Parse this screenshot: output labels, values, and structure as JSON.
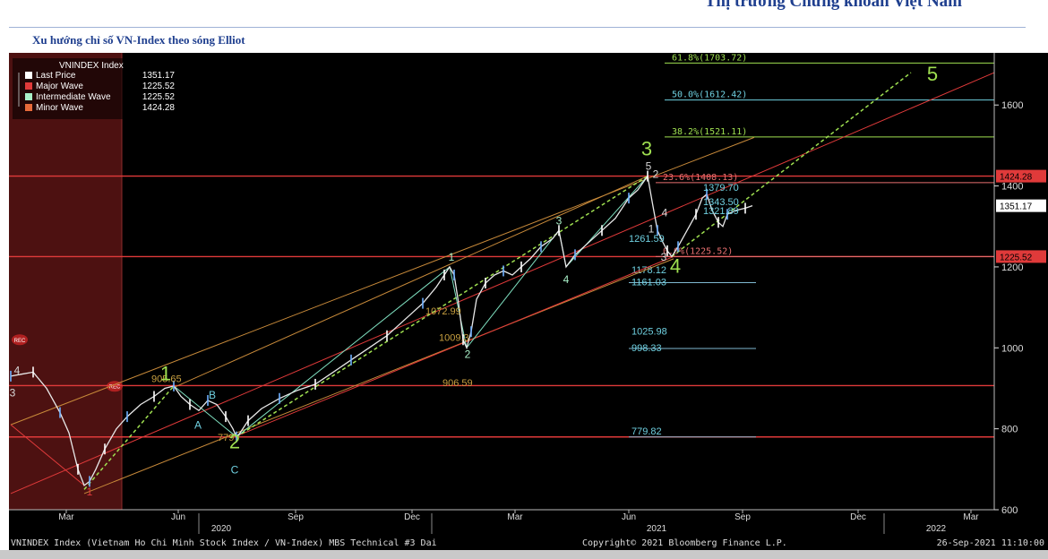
{
  "header": {
    "title": "Thị trường Chứng khoán Việt Nam"
  },
  "subtitle": "Xu hướng chỉ số VN-Index theo sóng Elliot",
  "colors": {
    "last": "#e8e8e8",
    "major": "#e03a3a",
    "intermediate": "#d9d9d9",
    "minor": "#e86a3a",
    "channel": "#c88a3a",
    "wave": "#9fe050",
    "fib": "#6fd0e0"
  },
  "chart_data": {
    "type": "line",
    "legend": {
      "title": "VNINDEX Index",
      "entries": [
        {
          "name": "Last Price",
          "value": "1351.17",
          "color": "#ffffff"
        },
        {
          "name": "Major Wave",
          "value": "1225.52",
          "color": "#e03a3a"
        },
        {
          "name": "Intermediate Wave",
          "value": "1225.52",
          "color": "#a8f0c8"
        },
        {
          "name": "Minor Wave",
          "value": "1424.28",
          "color": "#e86a3a"
        }
      ]
    },
    "ylim": [
      600,
      1720
    ],
    "yticks": [
      {
        "v": 600,
        "label": "600"
      },
      {
        "v": 800,
        "label": "800"
      },
      {
        "v": 1000,
        "label": "1000"
      },
      {
        "v": 1200,
        "label": "1200"
      },
      {
        "v": 1400,
        "label": "1400"
      },
      {
        "v": 1600,
        "label": "1600"
      }
    ],
    "xlim": [
      0,
      1098
    ],
    "xticks": [
      {
        "x": 62,
        "label": "Mar"
      },
      {
        "x": 187,
        "label": "Jun"
      },
      {
        "x": 318,
        "label": "Sep"
      },
      {
        "x": 448,
        "label": "Dec"
      },
      {
        "x": 563,
        "label": "Mar"
      },
      {
        "x": 690,
        "label": "Jun"
      },
      {
        "x": 817,
        "label": "Sep"
      },
      {
        "x": 946,
        "label": "Dec"
      },
      {
        "x": 1072,
        "label": "Mar"
      }
    ],
    "year_labels": [
      {
        "x": 235,
        "label": "2020"
      },
      {
        "x": 721,
        "label": "2021"
      },
      {
        "x": 1033,
        "label": "2022"
      }
    ],
    "year_dividers": [
      210,
      470,
      975
    ],
    "price_tags": [
      {
        "v": 1424.28,
        "label": "1424.28",
        "color": "#e03a3a"
      },
      {
        "v": 1351.17,
        "label": "1351.17",
        "color": "#ffffff"
      },
      {
        "v": 1225.52,
        "label": "1225.52",
        "color": "#e03a3a"
      }
    ],
    "fib_levels": [
      {
        "v": 1703.72,
        "label": "61.8%(1703.72)",
        "color": "#9fe050",
        "x1": 730
      },
      {
        "v": 1612.42,
        "label": "50.0%(1612.42)",
        "color": "#6fd0e0",
        "x1": 730
      },
      {
        "v": 1521.11,
        "label": "38.2%(1521.11)",
        "color": "#9fe050",
        "x1": 730
      },
      {
        "v": 1408.13,
        "label": "23.6%(1408.13)",
        "color": "#e87070",
        "x1": 720
      },
      {
        "v": 1225.52,
        "label": "0.0%(1225.52)",
        "color": "#e87070",
        "x1": 720
      }
    ],
    "red_lines": [
      1424.28,
      1225.52,
      906.59,
      779.82
    ],
    "support_levels": [
      {
        "v": 1178.12,
        "label": "1178.12"
      },
      {
        "v": 1161.03,
        "label": "1161.03"
      },
      {
        "v": 1025.98,
        "label": "1025.98"
      },
      {
        "v": 998.33,
        "label": "998.33"
      },
      {
        "v": 779.82,
        "label": "779.82"
      }
    ],
    "price": [
      [
        0,
        930
      ],
      [
        12,
        935
      ],
      [
        25,
        940
      ],
      [
        40,
        900
      ],
      [
        55,
        840
      ],
      [
        65,
        790
      ],
      [
        75,
        700
      ],
      [
        82,
        660
      ],
      [
        88,
        670
      ],
      [
        95,
        700
      ],
      [
        105,
        750
      ],
      [
        118,
        800
      ],
      [
        130,
        830
      ],
      [
        145,
        860
      ],
      [
        160,
        880
      ],
      [
        172,
        900
      ],
      [
        182,
        905.65
      ],
      [
        190,
        880
      ],
      [
        200,
        860
      ],
      [
        210,
        845
      ],
      [
        220,
        870
      ],
      [
        230,
        860
      ],
      [
        240,
        830
      ],
      [
        248,
        800
      ],
      [
        252,
        780
      ],
      [
        256,
        790
      ],
      [
        265,
        820
      ],
      [
        280,
        850
      ],
      [
        300,
        875
      ],
      [
        320,
        895
      ],
      [
        340,
        910
      ],
      [
        360,
        940
      ],
      [
        380,
        970
      ],
      [
        400,
        1000
      ],
      [
        420,
        1030
      ],
      [
        440,
        1070
      ],
      [
        460,
        1110
      ],
      [
        475,
        1150
      ],
      [
        484,
        1180
      ],
      [
        490,
        1200
      ],
      [
        495,
        1180
      ],
      [
        500,
        1110
      ],
      [
        505,
        1020
      ],
      [
        509,
        1000
      ],
      [
        514,
        1040
      ],
      [
        520,
        1120
      ],
      [
        530,
        1160
      ],
      [
        540,
        1180
      ],
      [
        550,
        1190
      ],
      [
        560,
        1180
      ],
      [
        570,
        1200
      ],
      [
        580,
        1220
      ],
      [
        592,
        1250
      ],
      [
        605,
        1270
      ],
      [
        612,
        1290
      ],
      [
        620,
        1200
      ],
      [
        630,
        1230
      ],
      [
        645,
        1260
      ],
      [
        660,
        1290
      ],
      [
        675,
        1320
      ],
      [
        690,
        1370
      ],
      [
        700,
        1390
      ],
      [
        711,
        1424.28
      ],
      [
        717,
        1350
      ],
      [
        722,
        1290
      ],
      [
        728,
        1261
      ],
      [
        733,
        1240
      ],
      [
        738,
        1225.52
      ],
      [
        745,
        1250
      ],
      [
        755,
        1290
      ],
      [
        765,
        1330
      ],
      [
        772,
        1370
      ],
      [
        777,
        1379.7
      ],
      [
        783,
        1340
      ],
      [
        790,
        1310
      ],
      [
        795,
        1300
      ],
      [
        800,
        1330
      ],
      [
        810,
        1340
      ],
      [
        820,
        1345
      ],
      [
        828,
        1351.17
      ]
    ],
    "wave_labels": [
      {
        "x": 173,
        "v": 920,
        "label": "1",
        "color": "#9fe050",
        "size": 22
      },
      {
        "x": 250,
        "v": 752,
        "label": "2",
        "color": "#9fe050",
        "size": 22
      },
      {
        "x": 710,
        "v": 1475,
        "label": "3",
        "color": "#9fe050",
        "size": 22
      },
      {
        "x": 742,
        "v": 1185,
        "label": "4",
        "color": "#9fe050",
        "size": 22
      },
      {
        "x": 1029,
        "v": 1660,
        "label": "5",
        "color": "#9fe050",
        "size": 22
      },
      {
        "x": 88,
        "v": 635,
        "label": "1",
        "color": "#e03a3a",
        "size": 12
      },
      {
        "x": 7,
        "v": 935,
        "label": "4",
        "color": "#d9d9d9",
        "size": 12
      },
      {
        "x": 2,
        "v": 880,
        "label": "3",
        "color": "#d9d9d9",
        "size": 12
      },
      {
        "x": 209,
        "v": 800,
        "label": "A",
        "color": "#6fd0e0",
        "size": 12
      },
      {
        "x": 225,
        "v": 875,
        "label": "B",
        "color": "#6fd0e0",
        "size": 12
      },
      {
        "x": 250,
        "v": 690,
        "label": "C",
        "color": "#6fd0e0",
        "size": 12
      },
      {
        "x": 492,
        "v": 1215,
        "label": "1",
        "color": "#a8f0c8",
        "size": 12
      },
      {
        "x": 510,
        "v": 975,
        "label": "2",
        "color": "#a8f0c8",
        "size": 12
      },
      {
        "x": 612,
        "v": 1305,
        "label": "3",
        "color": "#a8f0c8",
        "size": 12
      },
      {
        "x": 620,
        "v": 1160,
        "label": "4",
        "color": "#a8f0c8",
        "size": 12
      },
      {
        "x": 712,
        "v": 1440,
        "label": "5",
        "color": "#d9d9d9",
        "size": 12
      },
      {
        "x": 730,
        "v": 1325,
        "label": "4",
        "color": "#d9d9d9",
        "size": 12
      },
      {
        "x": 715,
        "v": 1285,
        "label": "1",
        "color": "#d9d9d9",
        "size": 12
      },
      {
        "x": 729,
        "v": 1215,
        "label": "3",
        "color": "#d9d9d9",
        "size": 12
      },
      {
        "x": 720,
        "v": 1420,
        "label": "2",
        "color": "#d9d9d9",
        "size": 12
      }
    ],
    "annotations": [
      {
        "x": 157,
        "v": 915,
        "label": "905.65",
        "color": "#c8a040"
      },
      {
        "x": 482,
        "v": 906,
        "label": "906.59",
        "color": "#c8a040"
      },
      {
        "x": 463,
        "v": 1082,
        "label": "1072.99",
        "color": "#c8a040"
      },
      {
        "x": 478,
        "v": 1017,
        "label": "1009.3",
        "color": "#c8a040"
      },
      {
        "x": 231,
        "v": 770,
        "label": "779",
        "color": "#c8a040"
      },
      {
        "x": 690,
        "v": 1262,
        "label": "1261.59",
        "color": "#6fd0e0"
      },
      {
        "x": 773,
        "v": 1388,
        "label": "1379.70",
        "color": "#6fd0e0"
      },
      {
        "x": 773,
        "v": 1353,
        "label": "1343.50",
        "color": "#6fd0e0"
      },
      {
        "x": 773,
        "v": 1330,
        "label": "1321.89",
        "color": "#6fd0e0"
      }
    ],
    "footer": {
      "left": "VNINDEX Index (Vietnam Ho Chi Minh Stock Index / VN-Index) MBS Technical #3  Dai",
      "center": "Copyright© 2021 Bloomberg Finance L.P.",
      "right": "26-Sep-2021 11:10:00"
    },
    "rec_labels": [
      "REC",
      "REC"
    ]
  }
}
